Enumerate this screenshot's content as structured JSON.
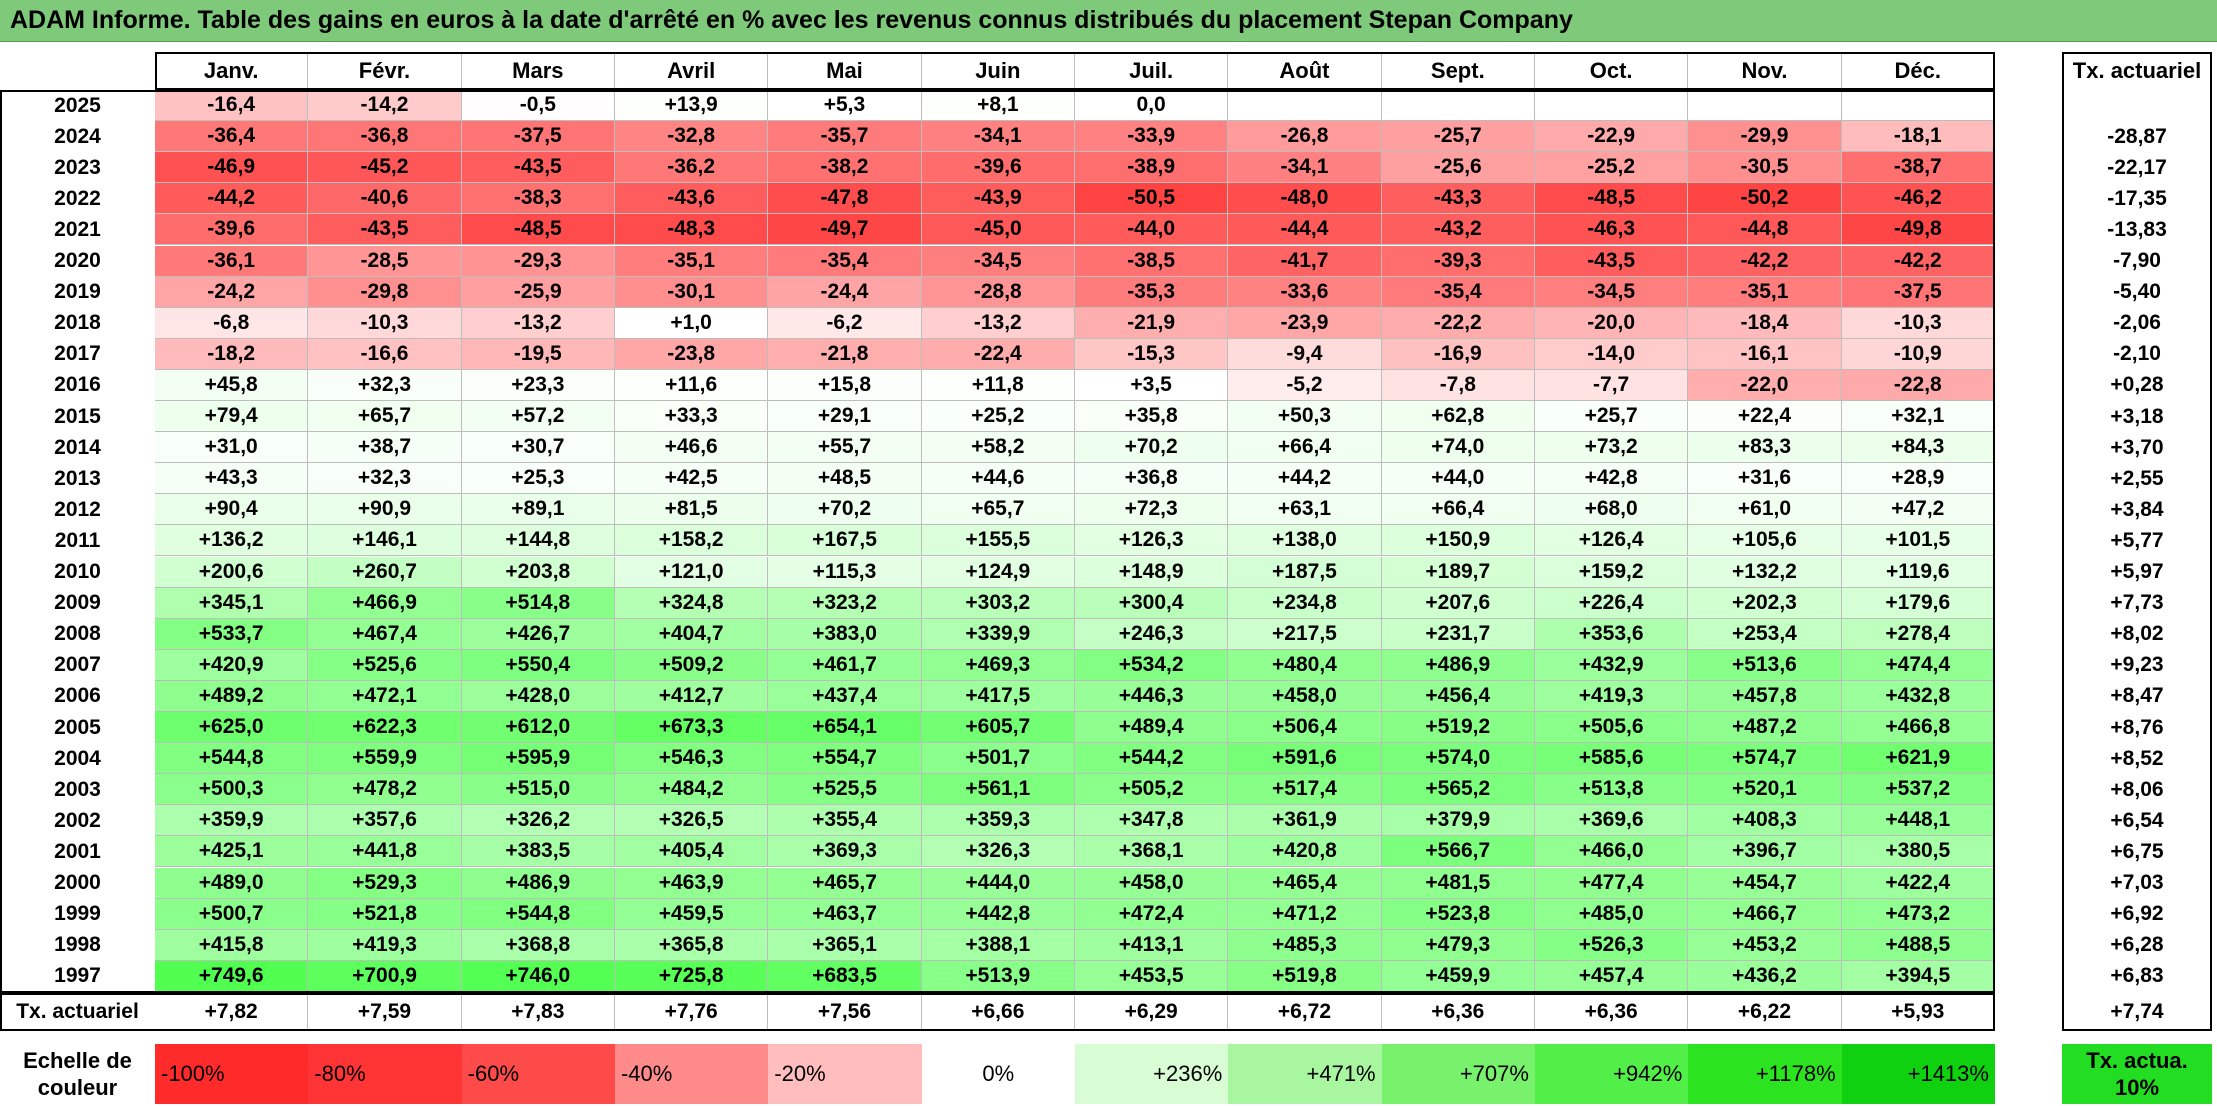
{
  "title": "ADAM Informe. Table des gains en euros à la date d'arrêté en % avec les revenus connus distribués du placement Stepan Company",
  "chart_data": {
    "type": "heatmap",
    "title": "ADAM Informe. Table des gains en euros à la date d'arrêté en % avec les revenus connus distribués du placement Stepan Company",
    "columns": [
      "Janv.",
      "Févr.",
      "Mars",
      "Avril",
      "Mai",
      "Juin",
      "Juil.",
      "Août",
      "Sept.",
      "Oct.",
      "Nov.",
      "Déc."
    ],
    "rate_header": "Tx. actuariel",
    "rows": [
      {
        "year": "2025",
        "values": [
          "-16,4",
          "-14,2",
          "-0,5",
          "+13,9",
          "+5,3",
          "+8,1",
          "0,0",
          "",
          "",
          "",
          "",
          ""
        ],
        "rate": ""
      },
      {
        "year": "2024",
        "values": [
          "-36,4",
          "-36,8",
          "-37,5",
          "-32,8",
          "-35,7",
          "-34,1",
          "-33,9",
          "-26,8",
          "-25,7",
          "-22,9",
          "-29,9",
          "-18,1"
        ],
        "rate": "-28,87"
      },
      {
        "year": "2023",
        "values": [
          "-46,9",
          "-45,2",
          "-43,5",
          "-36,2",
          "-38,2",
          "-39,6",
          "-38,9",
          "-34,1",
          "-25,6",
          "-25,2",
          "-30,5",
          "-38,7"
        ],
        "rate": "-22,17"
      },
      {
        "year": "2022",
        "values": [
          "-44,2",
          "-40,6",
          "-38,3",
          "-43,6",
          "-47,8",
          "-43,9",
          "-50,5",
          "-48,0",
          "-43,3",
          "-48,5",
          "-50,2",
          "-46,2"
        ],
        "rate": "-17,35"
      },
      {
        "year": "2021",
        "values": [
          "-39,6",
          "-43,5",
          "-48,5",
          "-48,3",
          "-49,7",
          "-45,0",
          "-44,0",
          "-44,4",
          "-43,2",
          "-46,3",
          "-44,8",
          "-49,8"
        ],
        "rate": "-13,83"
      },
      {
        "year": "2020",
        "values": [
          "-36,1",
          "-28,5",
          "-29,3",
          "-35,1",
          "-35,4",
          "-34,5",
          "-38,5",
          "-41,7",
          "-39,3",
          "-43,5",
          "-42,2",
          "-42,2"
        ],
        "rate": "-7,90"
      },
      {
        "year": "2019",
        "values": [
          "-24,2",
          "-29,8",
          "-25,9",
          "-30,1",
          "-24,4",
          "-28,8",
          "-35,3",
          "-33,6",
          "-35,4",
          "-34,5",
          "-35,1",
          "-37,5"
        ],
        "rate": "-5,40"
      },
      {
        "year": "2018",
        "values": [
          "-6,8",
          "-10,3",
          "-13,2",
          "+1,0",
          "-6,2",
          "-13,2",
          "-21,9",
          "-23,9",
          "-22,2",
          "-20,0",
          "-18,4",
          "-10,3"
        ],
        "rate": "-2,06"
      },
      {
        "year": "2017",
        "values": [
          "-18,2",
          "-16,6",
          "-19,5",
          "-23,8",
          "-21,8",
          "-22,4",
          "-15,3",
          "-9,4",
          "-16,9",
          "-14,0",
          "-16,1",
          "-10,9"
        ],
        "rate": "-2,10"
      },
      {
        "year": "2016",
        "values": [
          "+45,8",
          "+32,3",
          "+23,3",
          "+11,6",
          "+15,8",
          "+11,8",
          "+3,5",
          "-5,2",
          "-7,8",
          "-7,7",
          "-22,0",
          "-22,8"
        ],
        "rate": "+0,28"
      },
      {
        "year": "2015",
        "values": [
          "+79,4",
          "+65,7",
          "+57,2",
          "+33,3",
          "+29,1",
          "+25,2",
          "+35,8",
          "+50,3",
          "+62,8",
          "+25,7",
          "+22,4",
          "+32,1"
        ],
        "rate": "+3,18"
      },
      {
        "year": "2014",
        "values": [
          "+31,0",
          "+38,7",
          "+30,7",
          "+46,6",
          "+55,7",
          "+58,2",
          "+70,2",
          "+66,4",
          "+74,0",
          "+73,2",
          "+83,3",
          "+84,3"
        ],
        "rate": "+3,70"
      },
      {
        "year": "2013",
        "values": [
          "+43,3",
          "+32,3",
          "+25,3",
          "+42,5",
          "+48,5",
          "+44,6",
          "+36,8",
          "+44,2",
          "+44,0",
          "+42,8",
          "+31,6",
          "+28,9"
        ],
        "rate": "+2,55"
      },
      {
        "year": "2012",
        "values": [
          "+90,4",
          "+90,9",
          "+89,1",
          "+81,5",
          "+70,2",
          "+65,7",
          "+72,3",
          "+63,1",
          "+66,4",
          "+68,0",
          "+61,0",
          "+47,2"
        ],
        "rate": "+3,84"
      },
      {
        "year": "2011",
        "values": [
          "+136,2",
          "+146,1",
          "+144,8",
          "+158,2",
          "+167,5",
          "+155,5",
          "+126,3",
          "+138,0",
          "+150,9",
          "+126,4",
          "+105,6",
          "+101,5"
        ],
        "rate": "+5,77"
      },
      {
        "year": "2010",
        "values": [
          "+200,6",
          "+260,7",
          "+203,8",
          "+121,0",
          "+115,3",
          "+124,9",
          "+148,9",
          "+187,5",
          "+189,7",
          "+159,2",
          "+132,2",
          "+119,6"
        ],
        "rate": "+5,97"
      },
      {
        "year": "2009",
        "values": [
          "+345,1",
          "+466,9",
          "+514,8",
          "+324,8",
          "+323,2",
          "+303,2",
          "+300,4",
          "+234,8",
          "+207,6",
          "+226,4",
          "+202,3",
          "+179,6"
        ],
        "rate": "+7,73"
      },
      {
        "year": "2008",
        "values": [
          "+533,7",
          "+467,4",
          "+426,7",
          "+404,7",
          "+383,0",
          "+339,9",
          "+246,3",
          "+217,5",
          "+231,7",
          "+353,6",
          "+253,4",
          "+278,4"
        ],
        "rate": "+8,02"
      },
      {
        "year": "2007",
        "values": [
          "+420,9",
          "+525,6",
          "+550,4",
          "+509,2",
          "+461,7",
          "+469,3",
          "+534,2",
          "+480,4",
          "+486,9",
          "+432,9",
          "+513,6",
          "+474,4"
        ],
        "rate": "+9,23"
      },
      {
        "year": "2006",
        "values": [
          "+489,2",
          "+472,1",
          "+428,0",
          "+412,7",
          "+437,4",
          "+417,5",
          "+446,3",
          "+458,0",
          "+456,4",
          "+419,3",
          "+457,8",
          "+432,8"
        ],
        "rate": "+8,47"
      },
      {
        "year": "2005",
        "values": [
          "+625,0",
          "+622,3",
          "+612,0",
          "+673,3",
          "+654,1",
          "+605,7",
          "+489,4",
          "+506,4",
          "+519,2",
          "+505,6",
          "+487,2",
          "+466,8"
        ],
        "rate": "+8,76"
      },
      {
        "year": "2004",
        "values": [
          "+544,8",
          "+559,9",
          "+595,9",
          "+546,3",
          "+554,7",
          "+501,7",
          "+544,2",
          "+591,6",
          "+574,0",
          "+585,6",
          "+574,7",
          "+621,9"
        ],
        "rate": "+8,52"
      },
      {
        "year": "2003",
        "values": [
          "+500,3",
          "+478,2",
          "+515,0",
          "+484,2",
          "+525,5",
          "+561,1",
          "+505,2",
          "+517,4",
          "+565,2",
          "+513,8",
          "+520,1",
          "+537,2"
        ],
        "rate": "+8,06"
      },
      {
        "year": "2002",
        "values": [
          "+359,9",
          "+357,6",
          "+326,2",
          "+326,5",
          "+355,4",
          "+359,3",
          "+347,8",
          "+361,9",
          "+379,9",
          "+369,6",
          "+408,3",
          "+448,1"
        ],
        "rate": "+6,54"
      },
      {
        "year": "2001",
        "values": [
          "+425,1",
          "+441,8",
          "+383,5",
          "+405,4",
          "+369,3",
          "+326,3",
          "+368,1",
          "+420,8",
          "+566,7",
          "+466,0",
          "+396,7",
          "+380,5"
        ],
        "rate": "+6,75"
      },
      {
        "year": "2000",
        "values": [
          "+489,0",
          "+529,3",
          "+486,9",
          "+463,9",
          "+465,7",
          "+444,0",
          "+458,0",
          "+465,4",
          "+481,5",
          "+477,4",
          "+454,7",
          "+422,4"
        ],
        "rate": "+7,03"
      },
      {
        "year": "1999",
        "values": [
          "+500,7",
          "+521,8",
          "+544,8",
          "+459,5",
          "+463,7",
          "+442,8",
          "+472,4",
          "+471,2",
          "+523,8",
          "+485,0",
          "+466,7",
          "+473,2"
        ],
        "rate": "+6,92"
      },
      {
        "year": "1998",
        "values": [
          "+415,8",
          "+419,3",
          "+368,8",
          "+365,8",
          "+365,1",
          "+388,1",
          "+413,1",
          "+485,3",
          "+479,3",
          "+526,3",
          "+453,2",
          "+488,5"
        ],
        "rate": "+6,28"
      },
      {
        "year": "1997",
        "values": [
          "+749,6",
          "+700,9",
          "+746,0",
          "+725,8",
          "+683,5",
          "+513,9",
          "+453,5",
          "+519,8",
          "+459,9",
          "+457,4",
          "+436,2",
          "+394,5"
        ],
        "rate": "+6,83"
      }
    ],
    "footer": {
      "label": "Tx. actuariel",
      "values": [
        "+7,82",
        "+7,59",
        "+7,83",
        "+7,76",
        "+7,56",
        "+6,66",
        "+6,29",
        "+6,72",
        "+6,36",
        "+6,36",
        "+6,22",
        "+5,93"
      ],
      "rate": "+7,74"
    },
    "legend": {
      "label": "Echelle de couleur",
      "steps": [
        {
          "label": "-100%",
          "color": "#ff2a2a"
        },
        {
          "label": "-80%",
          "color": "#ff3535"
        },
        {
          "label": "-60%",
          "color": "#ff4a4a"
        },
        {
          "label": "-40%",
          "color": "#ff8a8a"
        },
        {
          "label": "-20%",
          "color": "#ffbdbd"
        },
        {
          "label": "0%",
          "color": "#ffffff"
        },
        {
          "label": "+236%",
          "color": "#d8fcd4"
        },
        {
          "label": "+471%",
          "color": "#a8f7a0"
        },
        {
          "label": "+707%",
          "color": "#78f26c"
        },
        {
          "label": "+942%",
          "color": "#52ef48"
        },
        {
          "label": "+1178%",
          "color": "#2be31f"
        },
        {
          "label": "+1413%",
          "color": "#0fd10f"
        }
      ],
      "rate_label": "Tx. actua. 10%",
      "rate_color": "#22dd22"
    },
    "color_scale": {
      "negative_max_color": "#ff2020",
      "zero_color": "#ffffff",
      "positive_max_color": "#00ff00",
      "positive_max_value": 1413
    }
  }
}
